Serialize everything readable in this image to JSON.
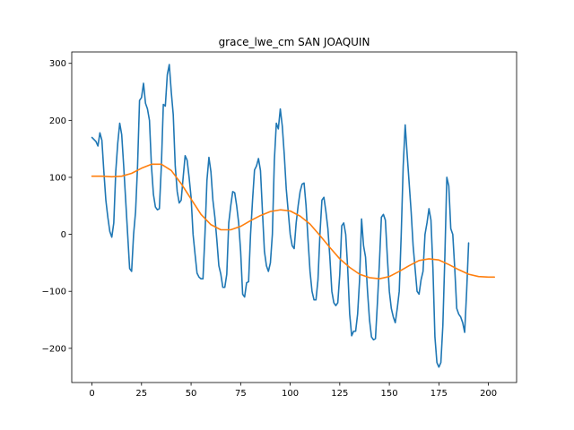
{
  "chart_data": {
    "type": "line",
    "title": "grace_lwe_cm SAN JOAQUIN",
    "xlabel": "",
    "ylabel": "",
    "xlim": [
      -10.2,
      214.2
    ],
    "ylim": [
      -260,
      320
    ],
    "x_ticks": [
      0,
      25,
      50,
      75,
      100,
      125,
      150,
      175,
      200
    ],
    "y_ticks": [
      -200,
      -100,
      0,
      100,
      200,
      300
    ],
    "grid": false,
    "legend": "none",
    "series": [
      {
        "color": "#1f77b4",
        "points": [
          [
            0,
            170
          ],
          [
            2,
            163
          ],
          [
            3,
            155
          ],
          [
            4,
            178
          ],
          [
            5,
            165
          ],
          [
            6,
            110
          ],
          [
            7,
            60
          ],
          [
            8,
            30
          ],
          [
            9,
            5
          ],
          [
            10,
            -5
          ],
          [
            11,
            20
          ],
          [
            12,
            110
          ],
          [
            13,
            160
          ],
          [
            14,
            195
          ],
          [
            15,
            175
          ],
          [
            16,
            120
          ],
          [
            17,
            60
          ],
          [
            18,
            0
          ],
          [
            19,
            -60
          ],
          [
            20,
            -65
          ],
          [
            21,
            0
          ],
          [
            22,
            40
          ],
          [
            23,
            120
          ],
          [
            24,
            235
          ],
          [
            25,
            240
          ],
          [
            26,
            265
          ],
          [
            27,
            230
          ],
          [
            28,
            220
          ],
          [
            29,
            200
          ],
          [
            30,
            120
          ],
          [
            31,
            70
          ],
          [
            32,
            48
          ],
          [
            33,
            43
          ],
          [
            34,
            45
          ],
          [
            35,
            120
          ],
          [
            36,
            228
          ],
          [
            37,
            225
          ],
          [
            38,
            280
          ],
          [
            39,
            298
          ],
          [
            40,
            250
          ],
          [
            41,
            210
          ],
          [
            42,
            120
          ],
          [
            43,
            75
          ],
          [
            44,
            55
          ],
          [
            45,
            60
          ],
          [
            46,
            100
          ],
          [
            47,
            138
          ],
          [
            48,
            130
          ],
          [
            49,
            100
          ],
          [
            50,
            65
          ],
          [
            51,
            0
          ],
          [
            52,
            -35
          ],
          [
            53,
            -68
          ],
          [
            54,
            -75
          ],
          [
            55,
            -78
          ],
          [
            56,
            -78
          ],
          [
            57,
            0
          ],
          [
            58,
            95
          ],
          [
            59,
            135
          ],
          [
            60,
            110
          ],
          [
            61,
            60
          ],
          [
            62,
            30
          ],
          [
            63,
            -10
          ],
          [
            64,
            -55
          ],
          [
            65,
            -70
          ],
          [
            66,
            -93
          ],
          [
            67,
            -93
          ],
          [
            68,
            -70
          ],
          [
            69,
            20
          ],
          [
            70,
            50
          ],
          [
            71,
            75
          ],
          [
            72,
            73
          ],
          [
            73,
            50
          ],
          [
            74,
            20
          ],
          [
            75,
            -30
          ],
          [
            76,
            -105
          ],
          [
            77,
            -110
          ],
          [
            78,
            -85
          ],
          [
            79,
            -83
          ],
          [
            80,
            0
          ],
          [
            81,
            60
          ],
          [
            82,
            113
          ],
          [
            83,
            120
          ],
          [
            84,
            133
          ],
          [
            85,
            112
          ],
          [
            86,
            40
          ],
          [
            87,
            -30
          ],
          [
            88,
            -55
          ],
          [
            89,
            -65
          ],
          [
            90,
            -50
          ],
          [
            91,
            0
          ],
          [
            92,
            130
          ],
          [
            93,
            195
          ],
          [
            94,
            185
          ],
          [
            95,
            220
          ],
          [
            96,
            190
          ],
          [
            97,
            140
          ],
          [
            98,
            80
          ],
          [
            99,
            40
          ],
          [
            100,
            0
          ],
          [
            101,
            -20
          ],
          [
            102,
            -25
          ],
          [
            103,
            20
          ],
          [
            104,
            50
          ],
          [
            105,
            75
          ],
          [
            106,
            88
          ],
          [
            107,
            90
          ],
          [
            108,
            50
          ],
          [
            109,
            -10
          ],
          [
            110,
            -65
          ],
          [
            111,
            -100
          ],
          [
            112,
            -115
          ],
          [
            113,
            -115
          ],
          [
            114,
            -80
          ],
          [
            115,
            0
          ],
          [
            116,
            60
          ],
          [
            117,
            65
          ],
          [
            118,
            40
          ],
          [
            119,
            10
          ],
          [
            120,
            -40
          ],
          [
            121,
            -100
          ],
          [
            122,
            -120
          ],
          [
            123,
            -125
          ],
          [
            124,
            -120
          ],
          [
            125,
            -70
          ],
          [
            126,
            15
          ],
          [
            127,
            20
          ],
          [
            128,
            0
          ],
          [
            129,
            -60
          ],
          [
            130,
            -140
          ],
          [
            131,
            -178
          ],
          [
            132,
            -170
          ],
          [
            133,
            -170
          ],
          [
            134,
            -140
          ],
          [
            135,
            -80
          ],
          [
            136,
            27
          ],
          [
            137,
            -20
          ],
          [
            138,
            -40
          ],
          [
            139,
            -100
          ],
          [
            140,
            -150
          ],
          [
            141,
            -180
          ],
          [
            142,
            -185
          ],
          [
            143,
            -183
          ],
          [
            144,
            -120
          ],
          [
            145,
            -50
          ],
          [
            146,
            30
          ],
          [
            147,
            35
          ],
          [
            148,
            25
          ],
          [
            149,
            -40
          ],
          [
            150,
            -100
          ],
          [
            151,
            -130
          ],
          [
            152,
            -145
          ],
          [
            153,
            -155
          ],
          [
            154,
            -130
          ],
          [
            155,
            -100
          ],
          [
            156,
            0
          ],
          [
            157,
            120
          ],
          [
            158,
            192
          ],
          [
            159,
            140
          ],
          [
            160,
            90
          ],
          [
            161,
            40
          ],
          [
            162,
            -20
          ],
          [
            163,
            -60
          ],
          [
            164,
            -100
          ],
          [
            165,
            -105
          ],
          [
            166,
            -80
          ],
          [
            167,
            -65
          ],
          [
            168,
            0
          ],
          [
            169,
            20
          ],
          [
            170,
            45
          ],
          [
            171,
            25
          ],
          [
            172,
            -60
          ],
          [
            173,
            -180
          ],
          [
            174,
            -225
          ],
          [
            175,
            -233
          ],
          [
            176,
            -225
          ],
          [
            177,
            -160
          ],
          [
            178,
            -40
          ],
          [
            179,
            100
          ],
          [
            180,
            85
          ],
          [
            181,
            10
          ],
          [
            182,
            0
          ],
          [
            183,
            -60
          ],
          [
            184,
            -130
          ],
          [
            185,
            -140
          ],
          [
            186,
            -145
          ],
          [
            187,
            -155
          ],
          [
            188,
            -172
          ],
          [
            189,
            -100
          ],
          [
            190,
            -15
          ]
        ]
      },
      {
        "color": "#ff7f0e",
        "points": [
          [
            0,
            102
          ],
          [
            5,
            102
          ],
          [
            10,
            101
          ],
          [
            15,
            102
          ],
          [
            20,
            107
          ],
          [
            25,
            116
          ],
          [
            30,
            123
          ],
          [
            35,
            123
          ],
          [
            40,
            112
          ],
          [
            45,
            89
          ],
          [
            50,
            62
          ],
          [
            55,
            35
          ],
          [
            60,
            17
          ],
          [
            65,
            8
          ],
          [
            70,
            8
          ],
          [
            75,
            14
          ],
          [
            80,
            24
          ],
          [
            85,
            33
          ],
          [
            90,
            40
          ],
          [
            95,
            43
          ],
          [
            100,
            41
          ],
          [
            105,
            32
          ],
          [
            110,
            18
          ],
          [
            115,
            -2
          ],
          [
            120,
            -23
          ],
          [
            125,
            -43
          ],
          [
            130,
            -58
          ],
          [
            135,
            -70
          ],
          [
            140,
            -76
          ],
          [
            145,
            -78
          ],
          [
            150,
            -74
          ],
          [
            155,
            -65
          ],
          [
            160,
            -55
          ],
          [
            165,
            -46
          ],
          [
            170,
            -43
          ],
          [
            175,
            -45
          ],
          [
            180,
            -53
          ],
          [
            185,
            -62
          ],
          [
            190,
            -70
          ],
          [
            195,
            -74
          ],
          [
            200,
            -75
          ],
          [
            203,
            -75
          ]
        ]
      }
    ]
  }
}
